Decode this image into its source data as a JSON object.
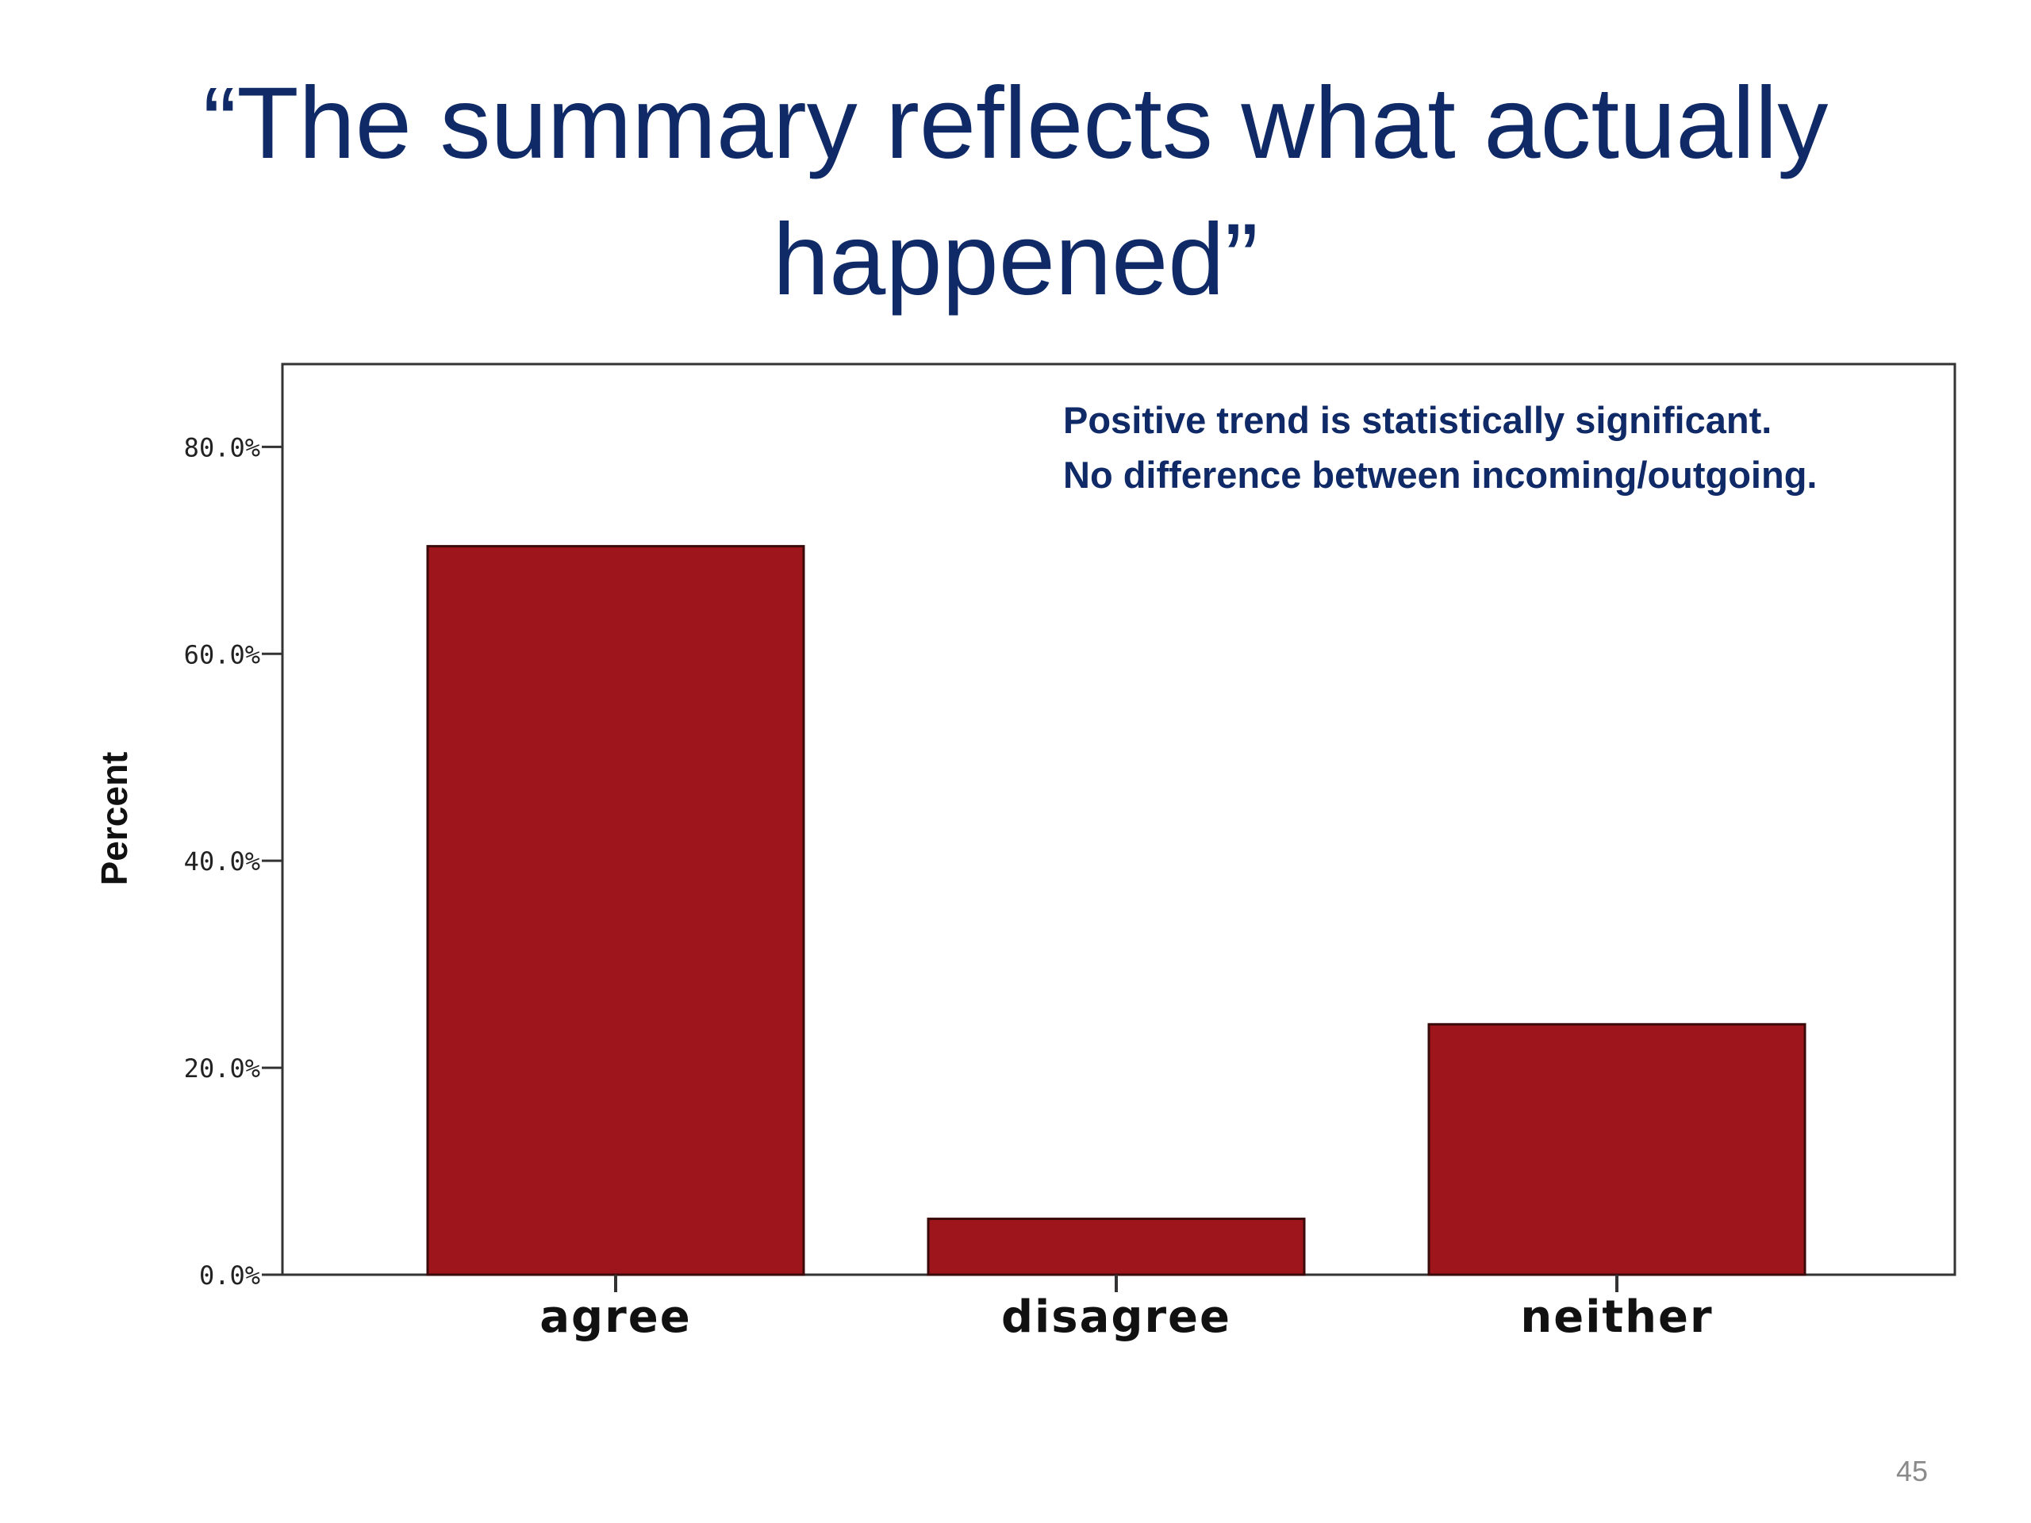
{
  "slide": {
    "title": "“The summary reflects what actually happened”",
    "page_number": "45"
  },
  "chart_data": {
    "type": "bar",
    "categories": [
      "agree",
      "disagree",
      "neither"
    ],
    "values": [
      70.4,
      5.4,
      24.2
    ],
    "xlabel": "",
    "ylabel": "Percent",
    "ylim": [
      0,
      88
    ],
    "yticks": [
      0,
      20,
      40,
      60,
      80
    ],
    "ytick_labels": [
      "0.0%",
      "20.0%",
      "40.0%",
      "60.0%",
      "80.0%"
    ],
    "annotations": [
      "Positive trend is statistically significant.",
      "No difference between incoming/outgoing."
    ],
    "colors": {
      "bar": "#9e161c",
      "title": "#0f2a66",
      "annotation": "#0f2a66",
      "axis": "#333333"
    },
    "grid": false
  }
}
